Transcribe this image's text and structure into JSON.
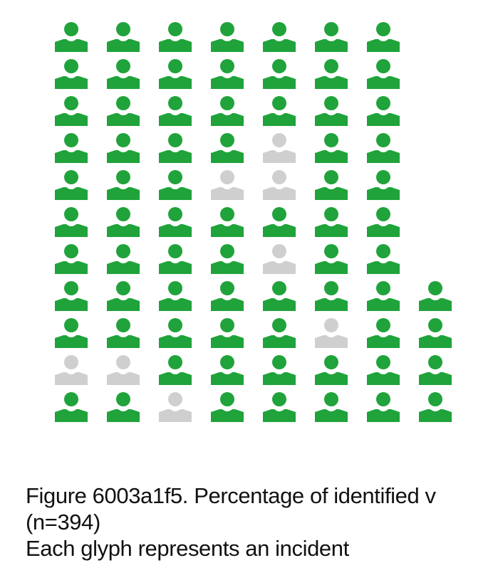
{
  "chart_data": {
    "type": "pictograph",
    "title": "Figure 6003a1f5. Percentage of identified v",
    "subtitle": "(n=394)",
    "note": "Each glyph represents an incident",
    "glyph_icon": "person-icon",
    "colors": {
      "identified": "#1fa33a",
      "unidentified": "#cfcfcf"
    },
    "columns": [
      {
        "total": 11,
        "unidentified_rows": [
          10
        ]
      },
      {
        "total": 11,
        "unidentified_rows": [
          10
        ]
      },
      {
        "total": 11,
        "unidentified_rows": [
          11
        ]
      },
      {
        "total": 11,
        "unidentified_rows": [
          5
        ]
      },
      {
        "total": 11,
        "unidentified_rows": [
          4,
          5,
          7
        ]
      },
      {
        "total": 11,
        "unidentified_rows": [
          9
        ]
      },
      {
        "total": 11,
        "unidentified_rows": []
      },
      {
        "total": 4,
        "unidentified_rows": []
      }
    ],
    "counts": {
      "total_glyphs": 81,
      "identified": 73,
      "unidentified": 8
    }
  }
}
